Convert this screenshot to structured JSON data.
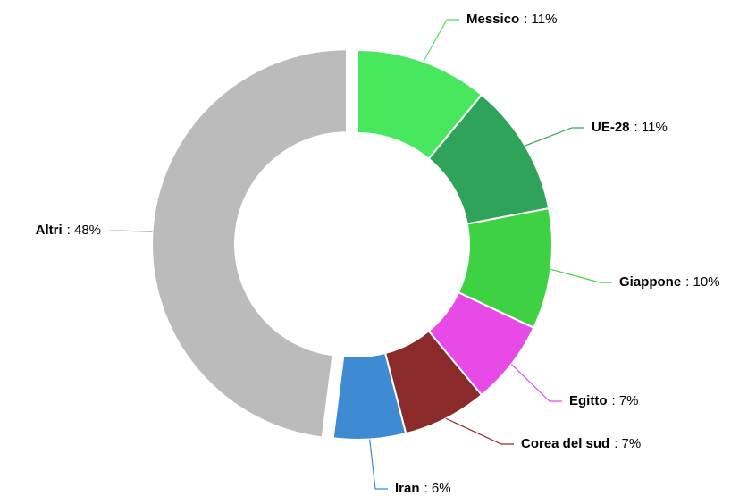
{
  "chart_data": {
    "type": "donut",
    "categories": [
      "Messico",
      "UE-28",
      "Giappone",
      "Egitto",
      "Corea del sud",
      "Iran",
      "Altri"
    ],
    "values": [
      11,
      11,
      10,
      7,
      7,
      6,
      48
    ],
    "value_labels": [
      ": 11%",
      ": 11%",
      ": 10%",
      ": 7%",
      ": 7%",
      ": 6%",
      ": 48%"
    ],
    "colors": [
      "#47e85e",
      "#2fa35a",
      "#3ed143",
      "#e84ae8",
      "#8b2a2a",
      "#3f8bd3",
      "#bbbbbb"
    ],
    "exploded": "Altri"
  }
}
